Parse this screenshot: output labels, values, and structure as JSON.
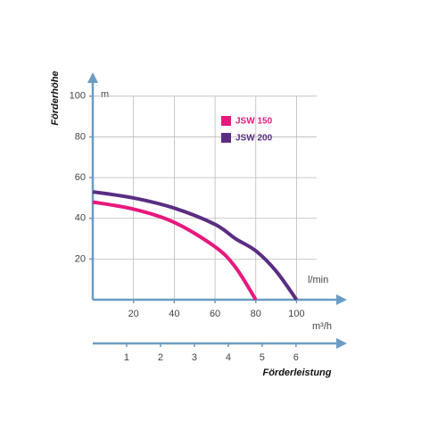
{
  "chart_data": {
    "type": "line",
    "y_title": "Förderhöhe",
    "y_unit": "m",
    "x_unit": "l/min",
    "x2_unit": "m³/h",
    "x2_title": "Förderleistung",
    "x": [
      0,
      20,
      40,
      60,
      70,
      80,
      90,
      100
    ],
    "series": [
      {
        "name": "JSW 150",
        "color": "#e6197d",
        "values": [
          48,
          44.5,
          38,
          26,
          16,
          0,
          null,
          null
        ]
      },
      {
        "name": "JSW 200",
        "color": "#5a2d82",
        "values": [
          53,
          50,
          45,
          37,
          30,
          24,
          14,
          0
        ]
      }
    ],
    "xlim": [
      0,
      123
    ],
    "xticks": [
      20,
      40,
      60,
      80,
      100
    ],
    "ylim": [
      0,
      110
    ],
    "yticks": [
      20,
      40,
      60,
      80,
      100
    ],
    "x2lim": [
      0,
      7.4
    ],
    "x2ticks": [
      1,
      2,
      3,
      4,
      5,
      6
    ],
    "grid": true
  }
}
